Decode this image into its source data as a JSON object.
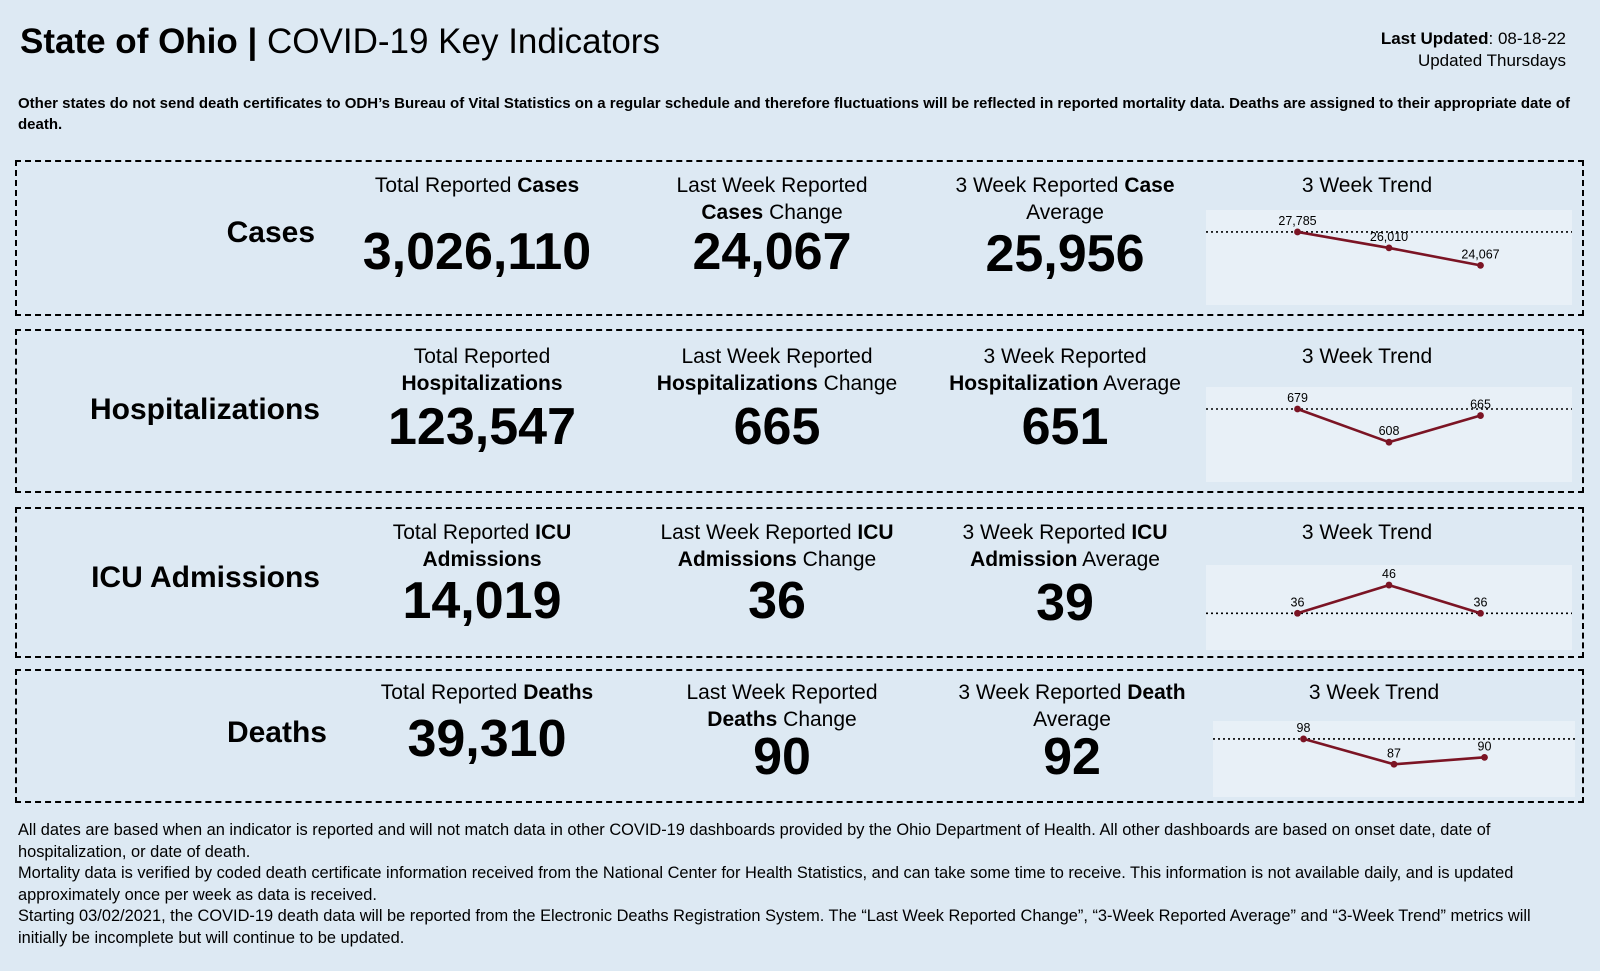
{
  "header": {
    "title_state": "State of Ohio |",
    "title_rest": " COVID-19 Key Indicators",
    "last_updated_label": "Last Updated",
    "last_updated_value": ": 08-18-22",
    "update_frequency": "Updated Thursdays"
  },
  "note": "Other states do not send death certificates to ODH’s Bureau of Vital Statistics on a regular schedule and therefore fluctuations will be reflected in reported mortality data. Deaths are assigned to their appropriate date of death.",
  "rows": {
    "cases": {
      "label": "Cases",
      "total_cap_a": "Total Reported ",
      "total_cap_b": "Cases",
      "total_value": "3,026,110",
      "change_cap_a": "Last Week Reported",
      "change_cap_b": "Cases",
      "change_cap_c": " Change",
      "change_value": "24,067",
      "avg_cap_a": "3 Week Reported ",
      "avg_cap_b": "Case",
      "avg_cap_c": "Average",
      "avg_value": "25,956",
      "trend_title": "3 Week Trend"
    },
    "hosp": {
      "label": "Hospitalizations",
      "total_cap_a": "Total Reported",
      "total_cap_b": "Hospitalizations",
      "total_value": "123,547",
      "change_cap_a": "Last Week Reported",
      "change_cap_b": "Hospitalizations",
      "change_cap_c": " Change",
      "change_value": "665",
      "avg_cap_a": "3 Week Reported",
      "avg_cap_b": "Hospitalization",
      "avg_cap_c": " Average",
      "avg_value": "651",
      "trend_title": "3 Week Trend"
    },
    "icu": {
      "label": "ICU Admissions",
      "total_cap_a": "Total Reported ",
      "total_cap_b": "ICU",
      "total_cap_c": "Admissions",
      "total_value": "14,019",
      "change_cap_a": "Last Week Reported ",
      "change_cap_b": "ICU",
      "change_cap_c": "Admissions",
      "change_cap_d": " Change",
      "change_value": "36",
      "avg_cap_a": "3 Week Reported ",
      "avg_cap_b": "ICU",
      "avg_cap_c": "Admission",
      "avg_cap_d": " Average",
      "avg_value": "39",
      "trend_title": "3 Week Trend"
    },
    "deaths": {
      "label": "Deaths",
      "total_cap_a": "Total Reported ",
      "total_cap_b": "Deaths",
      "total_value": "39,310",
      "change_cap_a": "Last Week Reported",
      "change_cap_b": "Deaths",
      "change_cap_c": " Change",
      "change_value": "90",
      "avg_cap_a": "3 Week Reported ",
      "avg_cap_b": "Death",
      "avg_cap_c": "Average",
      "avg_value": "92",
      "trend_title": "3 Week Trend"
    }
  },
  "chart_data": [
    {
      "type": "line",
      "id": "cases",
      "title": "3 Week Trend",
      "x": [
        1,
        2,
        3
      ],
      "values": [
        27785,
        26010,
        24067
      ],
      "labels": [
        "27,785",
        "26,010",
        "24,067"
      ],
      "reference_average": 25956,
      "reference_line": "dotted",
      "line_color": "#7b1424"
    },
    {
      "type": "line",
      "id": "hosp",
      "title": "3 Week Trend",
      "x": [
        1,
        2,
        3
      ],
      "values": [
        679,
        608,
        665
      ],
      "labels": [
        "679",
        "608",
        "665"
      ],
      "reference_average": 651,
      "reference_line": "dotted",
      "line_color": "#7b1424"
    },
    {
      "type": "line",
      "id": "icu",
      "title": "3 Week Trend",
      "x": [
        1,
        2,
        3
      ],
      "values": [
        36,
        46,
        36
      ],
      "labels": [
        "36",
        "46",
        "36"
      ],
      "reference_average": 39,
      "reference_line": "dotted",
      "line_color": "#7b1424"
    },
    {
      "type": "line",
      "id": "deaths",
      "title": "3 Week Trend",
      "x": [
        1,
        2,
        3
      ],
      "values": [
        98,
        87,
        90
      ],
      "labels": [
        "98",
        "87",
        "90"
      ],
      "reference_average": 92,
      "reference_line": "dotted",
      "line_color": "#7b1424"
    }
  ],
  "footer": {
    "p1": "All dates are based when an indicator is reported and will not match data in other COVID-19 dashboards provided by the Ohio Department of Health. All other dashboards are based on onset date, date of hospitalization, or date of death.",
    "p2": "Mortality data is verified by coded death certificate information received from the National Center for Health Statistics, and can take some time to receive. This information is not available daily, and is updated approximately once per week as data is received.",
    "p3": "Starting 03/02/2021, the COVID-19 death data will be reported from the Electronic Deaths Registration System. The “Last Week Reported Change”, “3-Week Reported Average” and “3-Week Trend” metrics will initially be incomplete but will continue to be updated."
  }
}
